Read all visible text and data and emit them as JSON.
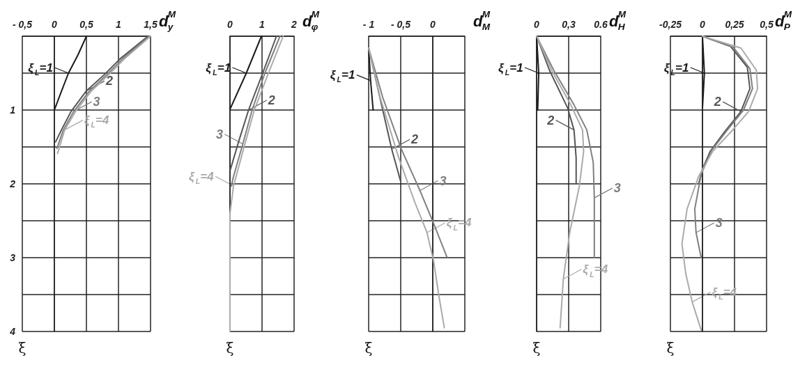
{
  "chart_data": [
    {
      "type": "line",
      "xlabel": "d$^{M}$$_{y}$",
      "ylabel": "ξ",
      "xlim": [
        -0.5,
        1.5
      ],
      "xticks": [
        {
          "value": -0.5,
          "label": "- 0,5"
        },
        0,
        {
          "value": 0.5,
          "label": "0,5"
        },
        1,
        {
          "value": 1.5,
          "label": "1,5"
        }
      ],
      "ylim": [
        4,
        0
      ],
      "yticks": [
        {
          "value": 0,
          "label": null
        },
        {
          "value": 0.5,
          "label": null
        },
        1,
        {
          "value": 1.5,
          "label": null
        },
        2,
        {
          "value": 2.5,
          "label": null
        },
        3,
        {
          "value": 3.5,
          "label": null
        },
        4
      ],
      "grid": true,
      "marker": "none",
      "line_style": "solid",
      "series": [
        {
          "color": "#1a1a1a",
          "x": [
            0.5,
            0.37,
            0.22,
            0.1,
            0
          ],
          "values": [
            0,
            0.25,
            0.5,
            0.77,
            1
          ]
        },
        {
          "color": "#555555",
          "x": [
            1.46,
            1.02,
            0.78,
            0.5,
            0.26,
            0.11,
            0.02
          ],
          "values": [
            0,
            0.31,
            0.52,
            0.74,
            1.02,
            1.27,
            1.43
          ]
        },
        {
          "color": "#808080",
          "x": [
            1.48,
            1.06,
            0.82,
            0.55,
            0.3,
            0.14,
            0.04
          ],
          "values": [
            0,
            0.31,
            0.52,
            0.74,
            1.02,
            1.27,
            1.52
          ]
        },
        {
          "color": "#aaaaaa",
          "x": [
            1.5,
            1.09,
            0.85,
            0.58,
            0.33,
            0.16,
            0.05
          ],
          "values": [
            0,
            0.31,
            0.52,
            0.74,
            1.02,
            1.27,
            1.59
          ]
        }
      ],
      "annotations": [
        {
          "text": "ξ$_{L}$=1",
          "x": 0.22,
          "y": 0.5
        },
        {
          "text": "2",
          "x": 0.5,
          "y": 0.74
        },
        {
          "text": "3",
          "x": 0.3,
          "y": 1.02
        },
        {
          "text": "ξ$_{L}$=4",
          "x": 0.16,
          "y": 1.27
        }
      ]
    },
    {
      "type": "line",
      "xlabel": "d$^{M}$$_{φ}$",
      "ylabel": "ξ",
      "xlim": [
        0,
        2
      ],
      "xticks": [
        0,
        1,
        2
      ],
      "ylim": [
        4,
        0
      ],
      "yticks": [
        0,
        0.5,
        1,
        1.5,
        2,
        2.5,
        3,
        3.5,
        4
      ],
      "grid": true,
      "tick_labels": "x",
      "marker": "none",
      "line_style": "solid",
      "series": [
        {
          "color": "#1a1a1a",
          "x": [
            0.98,
            0.51,
            0
          ],
          "values": [
            0,
            0.5,
            0.99
          ]
        },
        {
          "color": "#555555",
          "x": [
            1.45,
            1.02,
            0.58,
            0.29,
            0.01
          ],
          "values": [
            0,
            0.5,
            1,
            1.4,
            1.81
          ]
        },
        {
          "color": "#808080",
          "x": [
            1.56,
            1.09,
            0.69,
            0.4,
            0.11,
            0.04
          ],
          "values": [
            0,
            0.5,
            1,
            1.46,
            1.9,
            2.03
          ]
        },
        {
          "color": "#aaaaaa",
          "x": [
            1.66,
            1.2,
            0.76,
            0.44,
            0.11,
            0,
            0,
            0,
            0
          ],
          "values": [
            0,
            0.5,
            1,
            1.5,
            2.03,
            2.4,
            2.97,
            3.6,
            4
          ]
        }
      ],
      "annotations": [
        {
          "text": "ξ$_{L}$=1",
          "x": 0.51,
          "y": 0.5
        },
        {
          "text": "2",
          "x": 0.58,
          "y": 1
        },
        {
          "text": "3",
          "x": 0.4,
          "y": 1.46
        },
        {
          "text": "ξ$_{L}$=4",
          "x": 0.11,
          "y": 2.03
        }
      ]
    },
    {
      "type": "line",
      "xlabel": "d$^{M}$$_{M}$",
      "ylabel": "ξ",
      "xlim": [
        -1,
        0.5
      ],
      "xticks": [
        {
          "value": -1,
          "label": "- 1"
        },
        {
          "value": -0.5,
          "label": "- 0,5"
        },
        0,
        {
          "value": 0.5,
          "label": null
        }
      ],
      "ylim": [
        4,
        0
      ],
      "yticks": [
        0,
        0.5,
        1,
        1.5,
        2,
        2.5,
        3,
        3.5,
        4
      ],
      "grid": true,
      "tick_labels": "x",
      "marker": "none",
      "line_style": "solid",
      "series": [
        {
          "color": "#1a1a1a",
          "x": [
            -1,
            -0.97,
            -0.93
          ],
          "values": [
            0.16,
            0.6,
            1
          ]
        },
        {
          "color": "#555555",
          "x": [
            -1,
            -0.78,
            -0.64,
            -0.5
          ],
          "values": [
            0.16,
            1,
            1.53,
            1.97
          ]
        },
        {
          "color": "#808080",
          "x": [
            -1,
            -0.78,
            -0.49,
            -0.2,
            0.01,
            0.22
          ],
          "values": [
            0.16,
            0.83,
            1.53,
            2.09,
            2.53,
            2.99
          ]
        },
        {
          "color": "#aaaaaa",
          "x": [
            -1,
            -0.82,
            -0.53,
            -0.28,
            -0.09,
            0.01,
            0.1,
            0.18
          ],
          "values": [
            0.16,
            0.83,
            1.65,
            2.25,
            2.66,
            3.03,
            3.54,
            3.95
          ]
        }
      ],
      "annotations": [
        {
          "text": "ξ$_{L}$=1",
          "x": -0.97,
          "y": 0.6
        },
        {
          "text": "2",
          "x": -0.64,
          "y": 1.53
        },
        {
          "text": "3",
          "x": -0.2,
          "y": 2.09
        },
        {
          "text": "ξ$_{L}$=4",
          "x": -0.09,
          "y": 2.66
        }
      ]
    },
    {
      "type": "line",
      "xlabel": "d$^{M}$$_{H}$",
      "ylabel": "ξ",
      "xlim": [
        0,
        0.6
      ],
      "xticks": [
        0,
        {
          "value": 0.3,
          "label": "0,3"
        },
        {
          "value": 0.6,
          "label": "0.6"
        }
      ],
      "ylim": [
        4,
        0
      ],
      "yticks": [
        0,
        0.5,
        1,
        1.5,
        2,
        2.5,
        3,
        3.5,
        4
      ],
      "grid": true,
      "tick_labels": "x",
      "marker": "none",
      "line_style": "solid",
      "series": [
        {
          "color": "#1a1a1a",
          "x": [
            0,
            0.02,
            0.01
          ],
          "values": [
            0,
            0.5,
            1
          ]
        },
        {
          "color": "#555555",
          "x": [
            0,
            0.12,
            0.29,
            0.35,
            0.37,
            0.37
          ],
          "values": [
            0,
            0.46,
            0.97,
            1.27,
            1.65,
            2
          ]
        },
        {
          "color": "#808080",
          "x": [
            0,
            0.16,
            0.35,
            0.47,
            0.53,
            0.54,
            0.54
          ],
          "values": [
            0,
            0.46,
            0.93,
            1.27,
            1.71,
            2.19,
            3
          ]
        },
        {
          "color": "#aaaaaa",
          "x": [
            0,
            0.14,
            0.32,
            0.43,
            0.44,
            0.4,
            0.31,
            0.25,
            0.22
          ],
          "values": [
            0,
            0.46,
            0.93,
            1.27,
            1.56,
            2.03,
            2.66,
            3.29,
            3.95
          ]
        }
      ],
      "annotations": [
        {
          "text": "ξ$_{L}$=1",
          "x": 0.02,
          "y": 0.5
        },
        {
          "text": "2",
          "x": 0.35,
          "y": 1.27
        },
        {
          "text": "3",
          "x": 0.54,
          "y": 2.19
        },
        {
          "text": "ξ$_{L}$=4",
          "x": 0.25,
          "y": 3.29
        }
      ]
    },
    {
      "type": "line",
      "xlabel": "d$^{M}$$_{P}$",
      "ylabel": "ξ",
      "xlim": [
        -0.25,
        0.5
      ],
      "xticks": [
        {
          "value": -0.25,
          "label": "-0,25"
        },
        0,
        {
          "value": 0.25,
          "label": "0,25"
        },
        {
          "value": 0.5,
          "label": "0,5"
        }
      ],
      "ylim": [
        4,
        0
      ],
      "yticks": [
        0,
        0.5,
        1,
        1.5,
        2,
        2.5,
        3,
        3.5,
        4
      ],
      "grid": true,
      "tick_labels": "x",
      "marker": "none",
      "line_style": "solid",
      "series": [
        {
          "color": "#1a1a1a",
          "x": [
            0,
            0.015,
            0
          ],
          "values": [
            0,
            0.5,
            0.97
          ]
        },
        {
          "color": "#555555",
          "x": [
            0,
            0.22,
            0.35,
            0.37,
            0.3,
            0.17,
            0.06,
            0,
            -0.03
          ],
          "values": [
            0,
            0.14,
            0.42,
            0.71,
            1.02,
            1.3,
            1.56,
            1.8,
            2
          ]
        },
        {
          "color": "#808080",
          "x": [
            0,
            0.24,
            0.37,
            0.39,
            0.32,
            0.19,
            0.07,
            -0.01,
            -0.06,
            -0.05,
            -0.01
          ],
          "values": [
            0,
            0.15,
            0.44,
            0.71,
            1,
            1.28,
            1.55,
            1.87,
            2.34,
            2.66,
            3
          ]
        },
        {
          "color": "#aaaaaa",
          "x": [
            0,
            0.3,
            0.42,
            0.43,
            0.36,
            0.22,
            0.08,
            -0.03,
            -0.12,
            -0.16,
            -0.13,
            -0.08,
            -0.01
          ],
          "values": [
            0,
            0.16,
            0.46,
            0.71,
            1.02,
            1.3,
            1.56,
            1.9,
            2.34,
            2.81,
            3.22,
            3.6,
            3.98
          ]
        }
      ],
      "annotations": [
        {
          "text": "ξ$_{L}$=1",
          "x": 0.015,
          "y": 0.5
        },
        {
          "text": "2",
          "x": 0.3,
          "y": 1.02
        },
        {
          "text": "3",
          "x": -0.05,
          "y": 2.66
        },
        {
          "text": "ξ$_{L}$=4",
          "x": -0.08,
          "y": 3.6
        }
      ]
    }
  ]
}
